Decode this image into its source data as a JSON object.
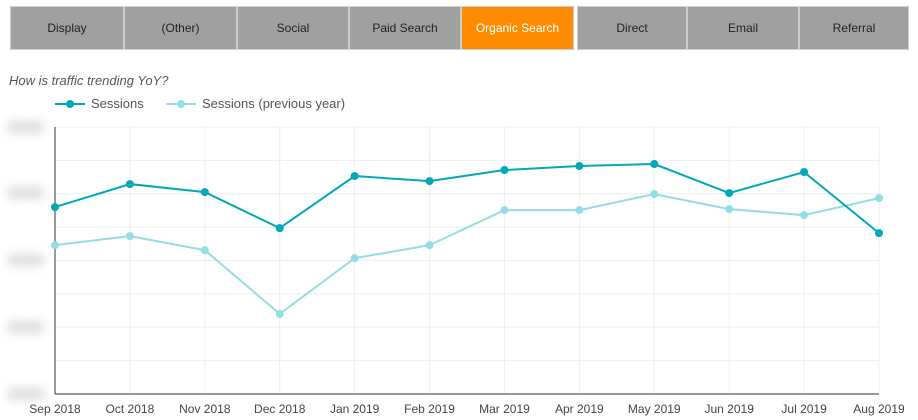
{
  "tabs": [
    {
      "label": "Display"
    },
    {
      "label": "(Other)"
    },
    {
      "label": "Social"
    },
    {
      "label": "Paid Search"
    },
    {
      "label": "Organic Search",
      "active": true
    },
    {
      "label": "Direct"
    },
    {
      "label": "Email"
    },
    {
      "label": "Referral"
    }
  ],
  "colors": {
    "active_tab": "#ff8c00",
    "sessions": "#00a8b8",
    "prev": "#94dde4"
  },
  "chart_data": {
    "type": "line",
    "title": "How is traffic trending YoY?",
    "categories": [
      "Sep 2018",
      "Oct 2018",
      "Nov 2018",
      "Dec 2018",
      "Jan 2019",
      "Feb 2019",
      "Mar 2019",
      "Apr 2019",
      "May 2019",
      "Jun 2019",
      "Jul 2019",
      "Aug 2019"
    ],
    "series": [
      {
        "name": "Sessions",
        "values": [
          5.6,
          6.29,
          6.05,
          4.97,
          6.53,
          6.38,
          6.71,
          6.83,
          6.89,
          6.02,
          6.65,
          4.82
        ]
      },
      {
        "name": "Sessions (previous year)",
        "values": [
          4.46,
          4.73,
          4.31,
          2.4,
          4.07,
          4.46,
          5.51,
          5.51,
          5.99,
          5.54,
          5.36,
          5.87
        ]
      }
    ],
    "ylim": [
      0,
      8
    ],
    "y_tick_labels_obscured": true,
    "grid": true,
    "legend": "top-left"
  }
}
